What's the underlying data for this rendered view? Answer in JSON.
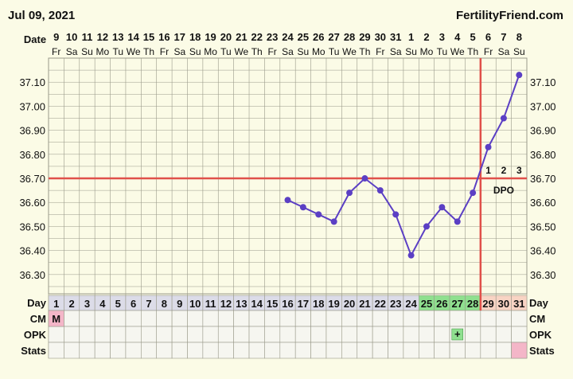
{
  "header": {
    "date": "Jul 09, 2021",
    "site": "FertilityFriend.com"
  },
  "row_labels": {
    "date": "Date",
    "day": "Day",
    "cm": "CM",
    "opk": "OPK",
    "stats": "Stats",
    "dpo": "DPO"
  },
  "chart_data": {
    "type": "line",
    "title": "",
    "xlabel": "Date",
    "ylabel": "",
    "dates": [
      "9",
      "10",
      "11",
      "12",
      "13",
      "14",
      "15",
      "16",
      "17",
      "18",
      "19",
      "20",
      "21",
      "22",
      "23",
      "24",
      "25",
      "26",
      "27",
      "28",
      "29",
      "30",
      "31",
      "1",
      "2",
      "3",
      "4",
      "5",
      "6",
      "7",
      "8"
    ],
    "weekdays": [
      "Fr",
      "Sa",
      "Su",
      "Mo",
      "Tu",
      "We",
      "Th",
      "Fr",
      "Sa",
      "Su",
      "Mo",
      "Tu",
      "We",
      "Th",
      "Fr",
      "Sa",
      "Su",
      "Mo",
      "Tu",
      "We",
      "Th",
      "Fr",
      "Sa",
      "Su",
      "Mo",
      "Tu",
      "We",
      "Th",
      "Fr",
      "Sa",
      "Su"
    ],
    "cycle_days": [
      1,
      2,
      3,
      4,
      5,
      6,
      7,
      8,
      9,
      10,
      11,
      12,
      13,
      14,
      15,
      16,
      17,
      18,
      19,
      20,
      21,
      22,
      23,
      24,
      25,
      26,
      27,
      28,
      29,
      30,
      31
    ],
    "temperatures": [
      null,
      null,
      null,
      null,
      null,
      null,
      null,
      null,
      null,
      null,
      null,
      null,
      null,
      null,
      null,
      36.61,
      36.58,
      36.55,
      36.52,
      36.64,
      36.7,
      36.65,
      36.55,
      36.38,
      36.5,
      36.58,
      36.52,
      36.64,
      36.83,
      36.95,
      37.13
    ],
    "yticks": [
      "36.30",
      "36.40",
      "36.50",
      "36.60",
      "36.70",
      "36.80",
      "36.90",
      "37.00",
      "37.10"
    ],
    "ylim": [
      36.22,
      37.2
    ],
    "coverline": 36.7,
    "ovulation_day": 28,
    "dpo": [
      {
        "day": 29,
        "label": "1"
      },
      {
        "day": 30,
        "label": "2"
      },
      {
        "day": 31,
        "label": "3"
      }
    ],
    "fertile_days": [
      25,
      26,
      27,
      28
    ],
    "luteal_days": [
      29,
      30,
      31
    ],
    "cm": [
      {
        "day": 1,
        "label": "M"
      }
    ],
    "opk": [
      {
        "day": 27,
        "label": "+"
      }
    ],
    "stats_marked": [
      31
    ],
    "colors": {
      "line": "#5b3fc4",
      "coverline": "#e0504a",
      "ovulation": "#e0504a",
      "fertile": "#8fe08f",
      "luteal": "#f8d4c4",
      "day_cell": "#dcdce8",
      "cm_menses": "#f4b6c8",
      "opk_positive": "#8fe08f",
      "stats_mark": "#f4b6c8",
      "grid": "#9a9a8a"
    }
  }
}
